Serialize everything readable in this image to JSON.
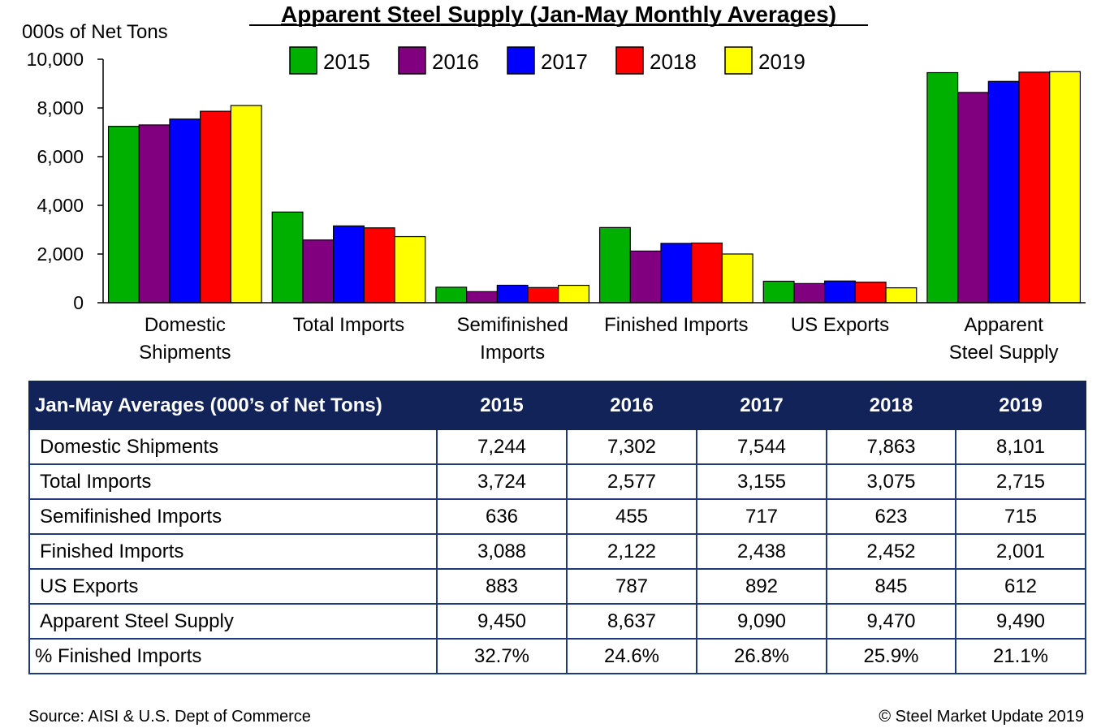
{
  "chart_data": {
    "type": "bar",
    "title": "Apparent Steel Supply (Jan-May Monthly Averages)",
    "ylabel": "000s of Net Tons",
    "xlabel": "",
    "ylim": [
      0,
      10000
    ],
    "yticks": [
      0,
      2000,
      4000,
      6000,
      8000,
      10000
    ],
    "ytick_labels": [
      "0",
      "2,000",
      "4,000",
      "6,000",
      "8,000",
      "10,000"
    ],
    "legend_position": "top-center",
    "grid": false,
    "categories": [
      [
        "Domestic",
        "Shipments"
      ],
      [
        "Total Imports"
      ],
      [
        "Semifinished",
        "Imports"
      ],
      [
        "Finished Imports"
      ],
      [
        "US Exports"
      ],
      [
        "Apparent",
        "Steel Supply"
      ]
    ],
    "series": [
      {
        "name": "2015",
        "color": "#00b000",
        "values": [
          7244,
          3724,
          636,
          3088,
          883,
          9450
        ]
      },
      {
        "name": "2016",
        "color": "#800080",
        "values": [
          7302,
          2577,
          455,
          2122,
          787,
          8637
        ]
      },
      {
        "name": "2017",
        "color": "#0000ff",
        "values": [
          7544,
          3155,
          717,
          2438,
          892,
          9090
        ]
      },
      {
        "name": "2018",
        "color": "#ff0000",
        "values": [
          7863,
          3075,
          623,
          2452,
          845,
          9470
        ]
      },
      {
        "name": "2019",
        "color": "#ffff00",
        "values": [
          8101,
          2715,
          715,
          2001,
          612,
          9490
        ]
      }
    ]
  },
  "table": {
    "header": [
      "Jan-May Averages (000’s of Net Tons)",
      "2015",
      "2016",
      "2017",
      "2018",
      "2019"
    ],
    "rows": [
      [
        "Domestic Shipments",
        "7,244",
        "7,302",
        "7,544",
        "7,863",
        "8,101"
      ],
      [
        "Total Imports",
        "3,724",
        "2,577",
        "3,155",
        "3,075",
        "2,715"
      ],
      [
        "Semifinished Imports",
        "636",
        "455",
        "717",
        "623",
        "715"
      ],
      [
        "Finished Imports",
        "3,088",
        "2,122",
        "2,438",
        "2,452",
        "2,001"
      ],
      [
        "US Exports",
        "883",
        "787",
        "892",
        "845",
        "612"
      ],
      [
        "Apparent Steel Supply",
        "9,450",
        "8,637",
        "9,090",
        "9,470",
        "9,490"
      ],
      [
        "% Finished Imports",
        "32.7%",
        "24.6%",
        "26.8%",
        "25.9%",
        "21.1%"
      ]
    ],
    "header_color": "#12235a"
  },
  "footer": {
    "source": "Source:  AISI & U.S. Dept of Commerce",
    "credit": "©    Steel Market Update 2019"
  }
}
